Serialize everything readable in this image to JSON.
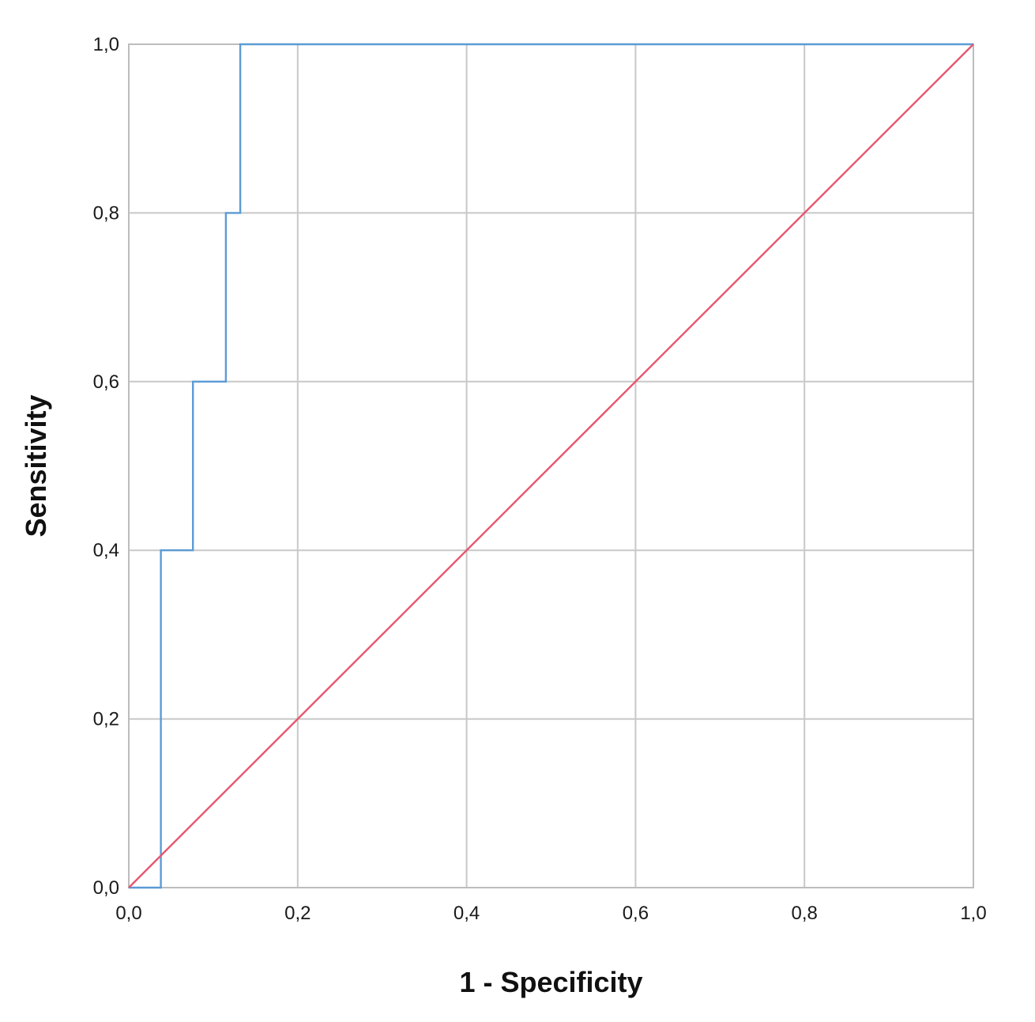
{
  "chart_data": {
    "type": "line",
    "title": "",
    "xlabel": "1 - Specificity",
    "ylabel": "Sensitivity",
    "xlim": [
      0,
      1
    ],
    "ylim": [
      0,
      1
    ],
    "grid": true,
    "x_ticks": [
      "0,0",
      "0,2",
      "0,4",
      "0,6",
      "0,8",
      "1,0"
    ],
    "y_ticks": [
      "0,0",
      "0,2",
      "0,4",
      "0,6",
      "0,8",
      "1,0"
    ],
    "x_tick_values": [
      0,
      0.2,
      0.4,
      0.6,
      0.8,
      1.0
    ],
    "y_tick_values": [
      0,
      0.2,
      0.4,
      0.6,
      0.8,
      1.0
    ],
    "series": [
      {
        "color": "#5b9bd5",
        "step": true,
        "points": [
          [
            0.0,
            0.0
          ],
          [
            0.038,
            0.0
          ],
          [
            0.038,
            0.4
          ],
          [
            0.076,
            0.4
          ],
          [
            0.076,
            0.6
          ],
          [
            0.115,
            0.6
          ],
          [
            0.115,
            0.8
          ],
          [
            0.132,
            0.8
          ],
          [
            0.132,
            1.0
          ],
          [
            1.0,
            1.0
          ]
        ]
      },
      {
        "color": "#e8566f",
        "step": false,
        "points": [
          [
            0.0,
            0.0
          ],
          [
            1.0,
            1.0
          ]
        ]
      }
    ]
  }
}
